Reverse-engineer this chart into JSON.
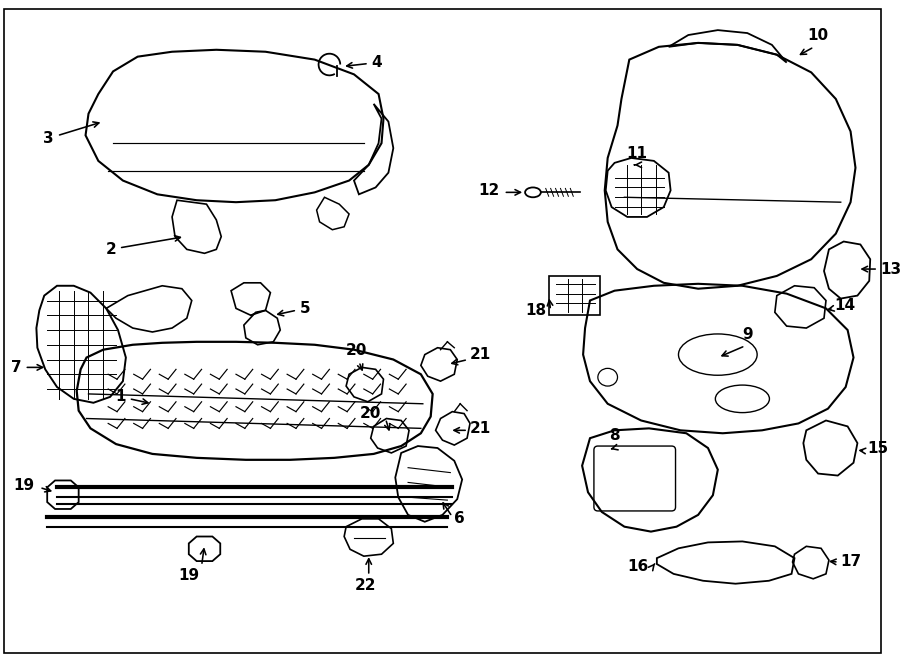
{
  "bg": "#ffffff",
  "lc": "#000000",
  "fig_w": 9.0,
  "fig_h": 6.62,
  "dpi": 100,
  "fs": 11,
  "lw_main": 1.4,
  "lw_thin": 0.9,
  "lw_arr": 1.1
}
